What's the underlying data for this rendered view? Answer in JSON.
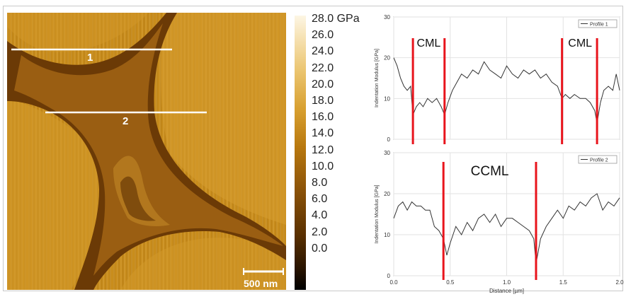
{
  "figure": {
    "colorbar": {
      "ticks": [
        "28.0 GPa",
        "26.0",
        "24.0",
        "22.0",
        "20.0",
        "18.0",
        "16.0",
        "14.0",
        "12.0",
        "10.0",
        "8.0",
        "6.0",
        "4.0",
        "2.0",
        "0.0"
      ]
    },
    "afm_image": {
      "line_labels": [
        "1",
        "2"
      ],
      "scale_bar": "500 nm"
    }
  },
  "chart_data": [
    {
      "type": "line",
      "legend": "Profile 1",
      "ylabel": "Indentation Modulus [GPa]",
      "yticks": [
        "0",
        "10",
        "20",
        "30"
      ],
      "ylim": [
        0,
        30
      ],
      "xlim": [
        0,
        2.0
      ],
      "annotations": [
        "CML",
        "CML"
      ],
      "marker_lines_x": [
        0.17,
        0.45,
        1.49,
        1.8
      ],
      "series": [
        {
          "name": "Profile 1",
          "x": [
            0,
            0.03,
            0.06,
            0.09,
            0.12,
            0.15,
            0.17,
            0.2,
            0.23,
            0.26,
            0.3,
            0.34,
            0.38,
            0.42,
            0.45,
            0.48,
            0.52,
            0.56,
            0.6,
            0.65,
            0.7,
            0.75,
            0.8,
            0.85,
            0.9,
            0.95,
            1.0,
            1.05,
            1.1,
            1.15,
            1.2,
            1.25,
            1.3,
            1.35,
            1.4,
            1.45,
            1.49,
            1.52,
            1.56,
            1.6,
            1.65,
            1.7,
            1.74,
            1.78,
            1.8,
            1.83,
            1.86,
            1.9,
            1.94,
            1.97,
            2.0
          ],
          "y": [
            20,
            18,
            15,
            13,
            12,
            13,
            6,
            8,
            9,
            8,
            10,
            9,
            10,
            8,
            6,
            9,
            12,
            14,
            16,
            15,
            17,
            16,
            19,
            17,
            16,
            15,
            18,
            16,
            15,
            17,
            16,
            17,
            15,
            16,
            14,
            13,
            10,
            11,
            10,
            11,
            10,
            10,
            9,
            7,
            4,
            9,
            12,
            13,
            12,
            16,
            12
          ]
        }
      ]
    },
    {
      "type": "line",
      "legend": "Profile 2",
      "ylabel": "Indentation Modulus [GPa]",
      "xlabel": "Distance [µm]",
      "yticks": [
        "0",
        "10",
        "20",
        "30"
      ],
      "xticks": [
        "0.0",
        "0.5",
        "1.0",
        "1.5",
        "2.0"
      ],
      "ylim": [
        0,
        30
      ],
      "xlim": [
        0,
        2.0
      ],
      "annotations": [
        "CCML"
      ],
      "marker_lines_x": [
        0.44,
        1.26
      ],
      "series": [
        {
          "name": "Profile 2",
          "x": [
            0,
            0.04,
            0.08,
            0.12,
            0.16,
            0.2,
            0.24,
            0.28,
            0.32,
            0.36,
            0.4,
            0.44,
            0.47,
            0.5,
            0.55,
            0.6,
            0.65,
            0.7,
            0.75,
            0.8,
            0.85,
            0.9,
            0.95,
            1.0,
            1.05,
            1.1,
            1.15,
            1.2,
            1.24,
            1.26,
            1.3,
            1.35,
            1.4,
            1.45,
            1.5,
            1.55,
            1.6,
            1.65,
            1.7,
            1.75,
            1.8,
            1.85,
            1.9,
            1.95,
            2.0
          ],
          "y": [
            14,
            17,
            18,
            16,
            18,
            17,
            17,
            16,
            16,
            12,
            11,
            9,
            5,
            8,
            12,
            10,
            13,
            11,
            14,
            15,
            13,
            15,
            12,
            14,
            14,
            13,
            12,
            11,
            9,
            3,
            9,
            12,
            14,
            16,
            14,
            17,
            16,
            18,
            17,
            19,
            20,
            16,
            18,
            17,
            19
          ]
        }
      ]
    }
  ]
}
